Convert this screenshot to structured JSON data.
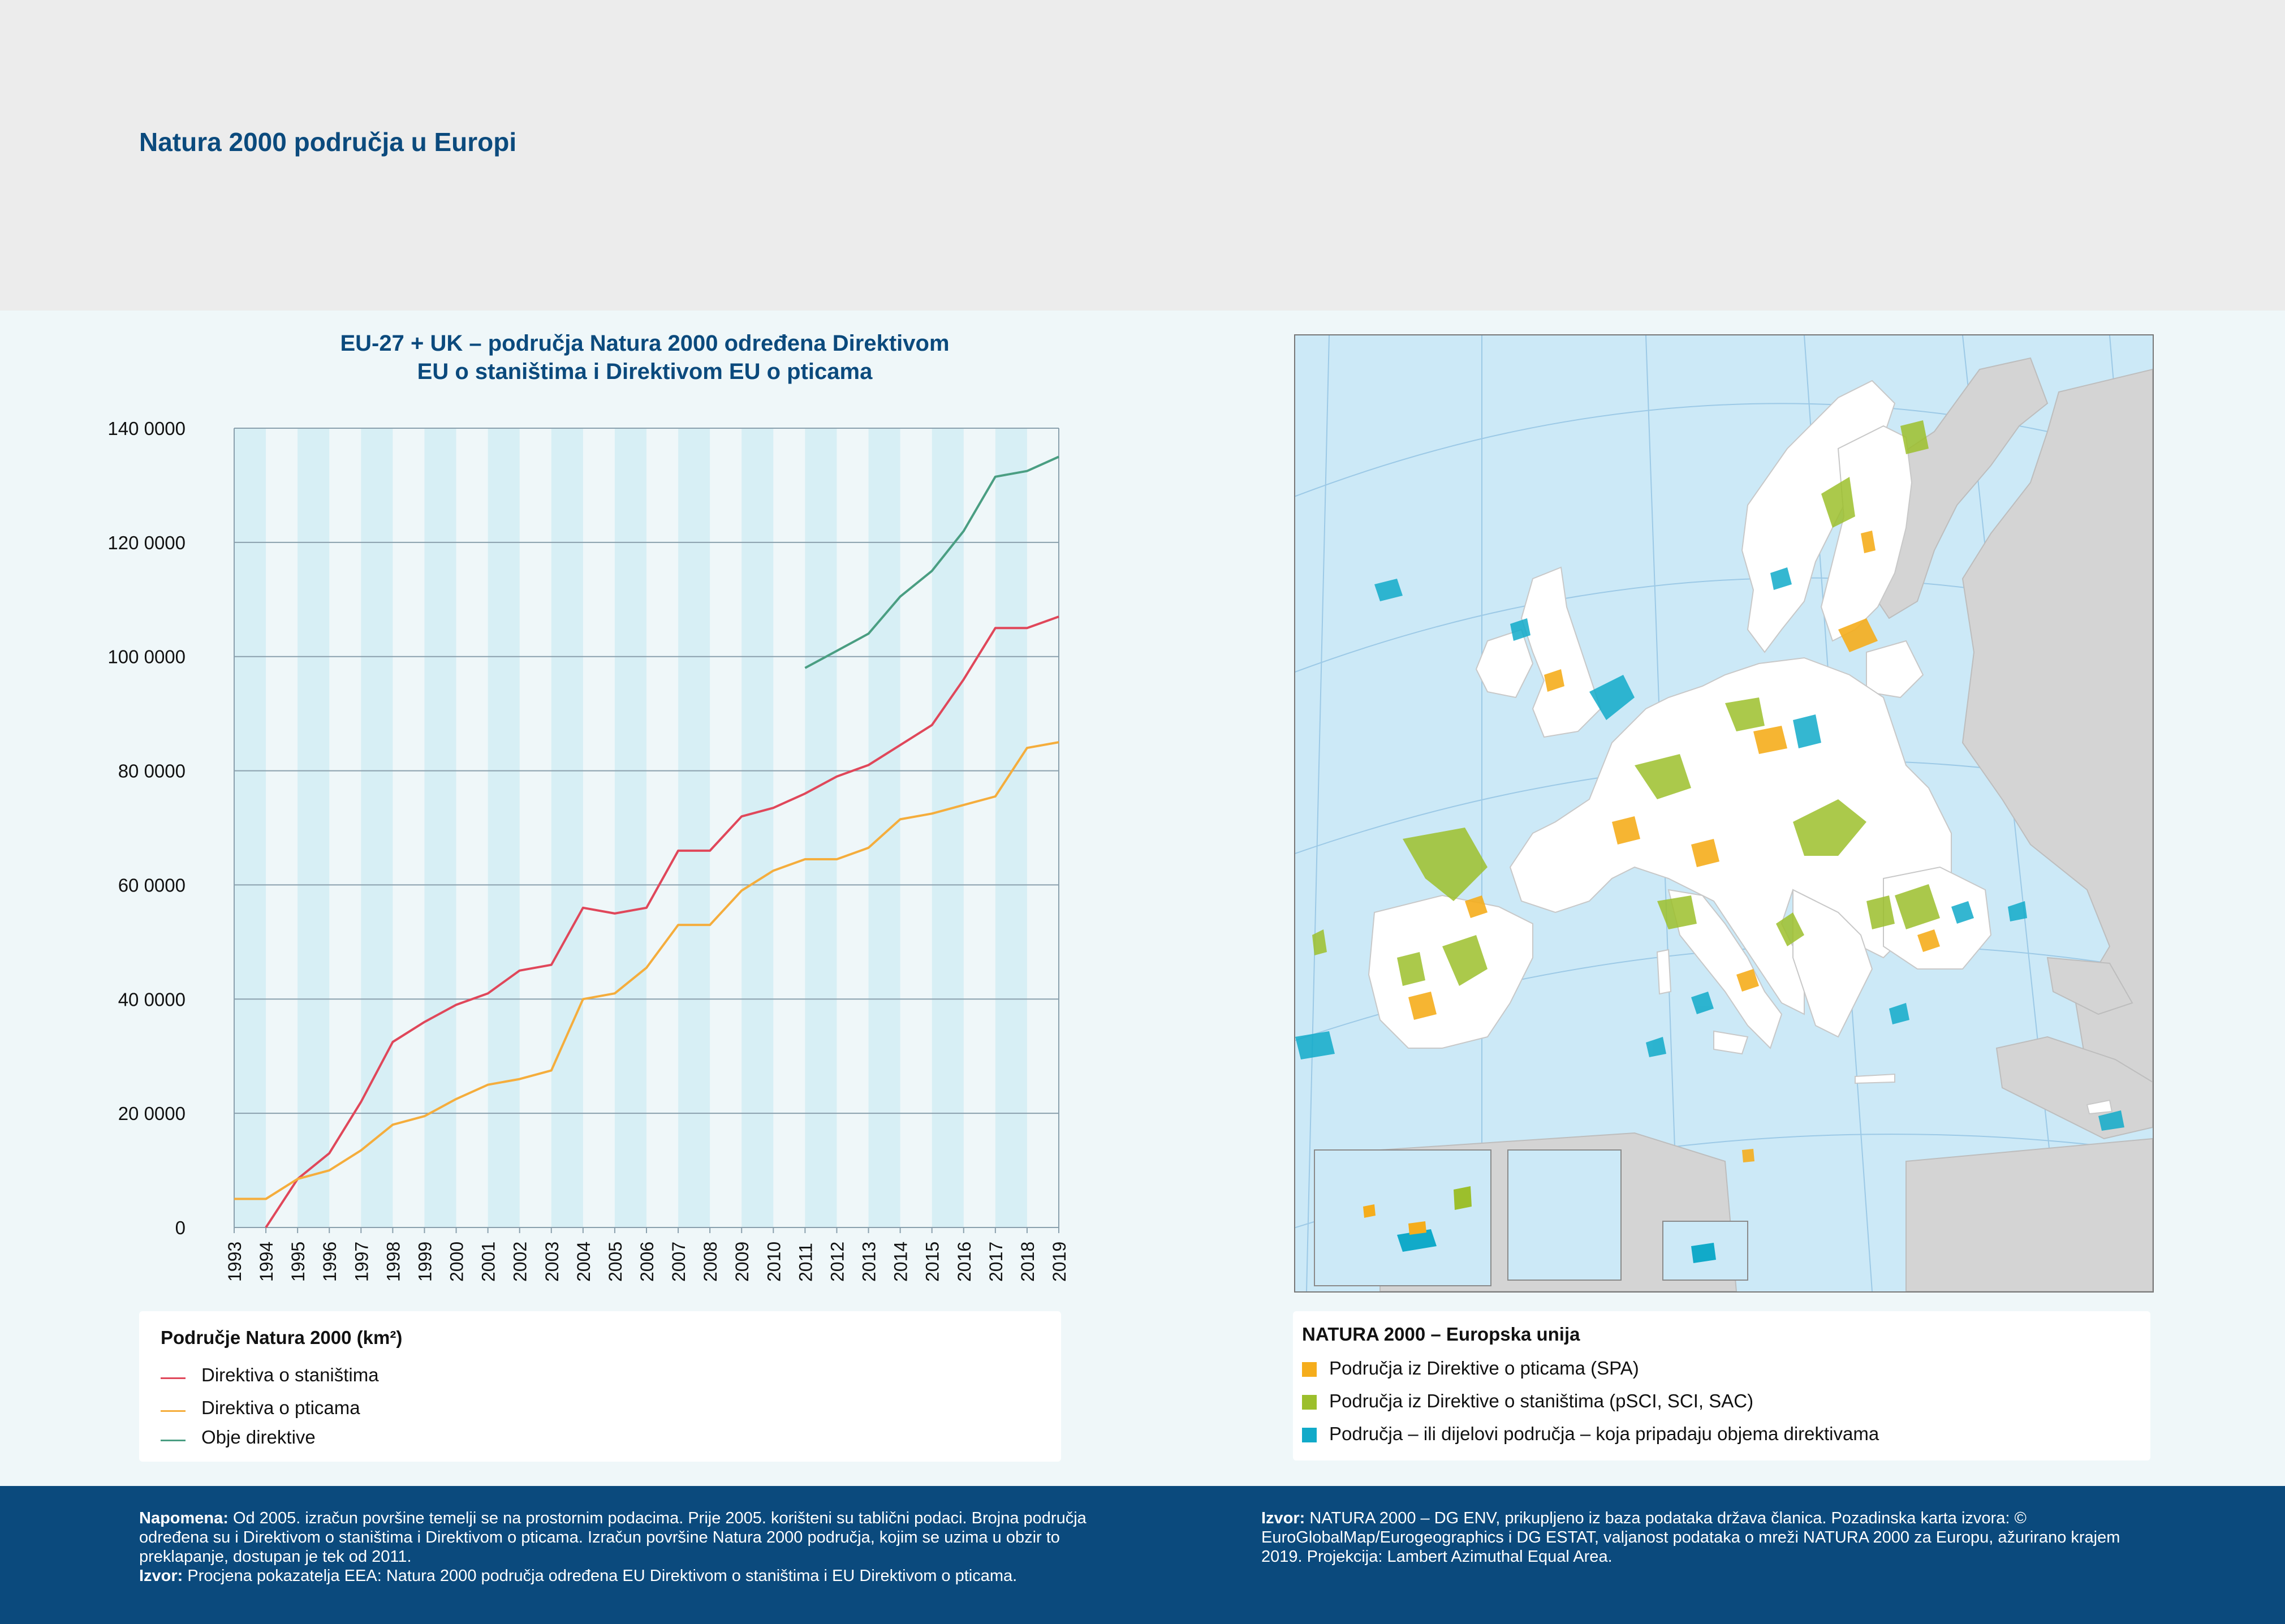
{
  "page": {
    "title": "Natura 2000 područja u Europi"
  },
  "chart": {
    "title_line1": "EU-27 + UK – područja Natura 2000 određena Direktivom",
    "title_line2": "EU o staništima i Direktivom EU o pticama",
    "legend_title": "Područje Natura 2000 (km²)",
    "legend_items": [
      "Direktiva o staništima",
      "Direktiva o pticama",
      "Obje direktive"
    ]
  },
  "chart_data": {
    "type": "line",
    "title": "EU-27 + UK – područja Natura 2000 određena Direktivom EU o staništima i Direktivom EU o pticama",
    "x": [
      "1993",
      "1994",
      "1995",
      "1996",
      "1997",
      "1998",
      "1999",
      "2000",
      "2001",
      "2002",
      "2003",
      "2004",
      "2005",
      "2006",
      "2007",
      "2008",
      "2009",
      "2010",
      "2011",
      "2012",
      "2013",
      "2014",
      "2015",
      "2016",
      "2017",
      "2018",
      "2019"
    ],
    "y_ticks": [
      "0",
      "20 0000",
      "40 0000",
      "60 0000",
      "80 0000",
      "100 0000",
      "120 0000",
      "140 0000"
    ],
    "ylim": [
      0,
      140000
    ],
    "grid": true,
    "alternating_bands": true,
    "series": [
      {
        "name": "Direktiva o staništima",
        "color": "#e0475a",
        "values": [
          null,
          0,
          8500,
          13000,
          22000,
          32500,
          36000,
          39000,
          41000,
          45000,
          46000,
          56000,
          55000,
          56000,
          66000,
          66000,
          72000,
          73500,
          76000,
          79000,
          81000,
          84500,
          88000,
          96000,
          105000,
          105000,
          107000
        ]
      },
      {
        "name": "Direktiva o pticama",
        "color": "#f5ad3c",
        "values": [
          5000,
          5000,
          8500,
          10000,
          13500,
          18000,
          19500,
          22500,
          25000,
          26000,
          27500,
          40000,
          41000,
          45500,
          53000,
          53000,
          59000,
          62500,
          64500,
          64500,
          66500,
          71500,
          72500,
          74000,
          75500,
          84000,
          85000
        ]
      },
      {
        "name": "Obje direktive",
        "color": "#4a9e82",
        "values": [
          null,
          null,
          null,
          null,
          null,
          null,
          null,
          null,
          null,
          null,
          null,
          null,
          null,
          null,
          null,
          null,
          null,
          null,
          98000,
          101000,
          104000,
          110500,
          115000,
          122000,
          131500,
          132500,
          135000
        ]
      }
    ]
  },
  "map": {
    "legend_title": "NATURA 2000 – Europska unija",
    "legend_items": [
      {
        "label": "Područja iz Direktive o pticama (SPA)",
        "color": "#f5ad1c"
      },
      {
        "label": "Područja iz Direktive o staništima (pSCI, SCI, SAC)",
        "color": "#9cbf2c"
      },
      {
        "label": "Područja – ili dijelovi područja – koja pripadaju objema direktivama",
        "color": "#11aac9"
      }
    ],
    "colors": {
      "sea": "#cce9f7",
      "land_eu": "#ffffff",
      "land_other": "#d4d4d4"
    }
  },
  "footer": {
    "note_label": "Napomena:",
    "note_text": " Od 2005. izračun površine temelji se na prostornim podacima. Prije 2005. korišteni su tablični podaci. Brojna područja određena su i Direktivom o staništima i Direktivom o pticama. Izračun površine Natura 2000 područja, kojim se uzima u obzir to preklapanje, dostupan je tek od 2011.",
    "source_left_label": "Izvor:",
    "source_left_text": " Procjena pokazatelja EEA: Natura 2000 područja određena  EU Direktivom o staništima i  EU Direktivom o pticama.",
    "source_right_label": "Izvor:",
    "source_right_text": " NATURA 2000 – DG ENV, prikupljeno iz baza podataka država članica. Pozadinska karta izvora: © EuroGlobalMap/Eurogeographics i DG ESTAT, valjanost podataka o mreži NATURA 2000 za Europu, ažurirano krajem 2019. Projekcija: Lambert Azimuthal Equal Area."
  }
}
